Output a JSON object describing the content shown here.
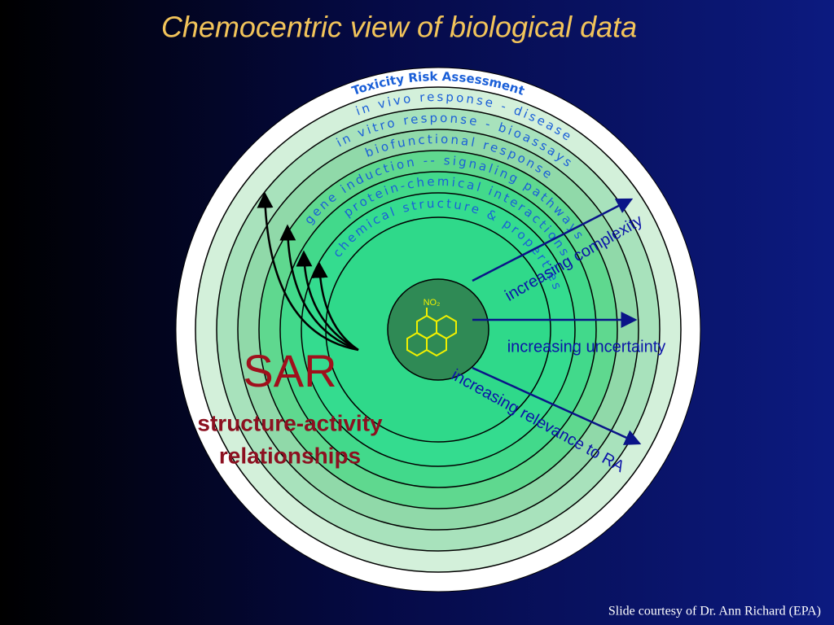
{
  "title": "Chemocentric view of biological data",
  "rings": [
    "Toxicity Risk Assessment",
    "in vivo response - disease",
    "in vitro response - bioassays",
    "biofunctional response",
    "gene induction -- signaling pathways",
    "protein-chemical interactions",
    "chemical structure & properties"
  ],
  "center_label": "NO₂",
  "arrows": [
    "increasing complexity",
    "increasing uncertainty",
    "increasing relevance to RA"
  ],
  "sar": {
    "title": "SAR",
    "subtitle": [
      "structure-activity",
      "relationships"
    ]
  },
  "footer": "Slide courtesy of Dr. Ann Richard (EPA)"
}
